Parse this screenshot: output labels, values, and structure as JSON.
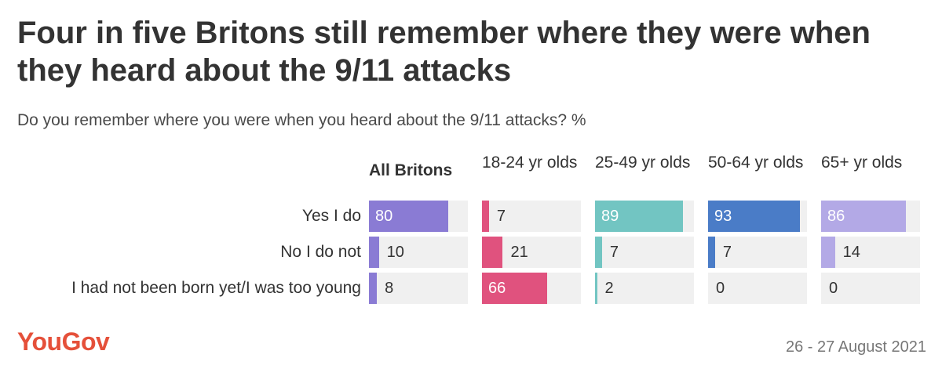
{
  "header": {
    "title": "Four in five Britons still remember where they were when they heard about the 9/11 attacks",
    "subtitle": "Do you remember where you were when you heard about the 9/11 attacks? %"
  },
  "footer": {
    "logo": "YouGov",
    "date": "26 - 27 August 2021"
  },
  "chart_data": {
    "type": "bar",
    "title": "Four in five Britons still remember where they were when they heard about the 9/11 attacks",
    "subtitle": "Do you remember where you were when you heard about the 9/11 attacks? %",
    "categories": [
      "Yes I do",
      "No I do not",
      "I had not been born yet/I was too young"
    ],
    "xlim": [
      0,
      100
    ],
    "series": [
      {
        "name": "All Britons",
        "color": "#8a7bd4",
        "values": [
          80,
          10,
          8
        ]
      },
      {
        "name": "18-24 yr olds",
        "color": "#e0527e",
        "values": [
          7,
          21,
          66
        ]
      },
      {
        "name": "25-49 yr olds",
        "color": "#72c5c2",
        "values": [
          89,
          7,
          2
        ]
      },
      {
        "name": "50-64 yr olds",
        "color": "#4a7cc7",
        "values": [
          93,
          7,
          0
        ]
      },
      {
        "name": "65+ yr olds",
        "color": "#b3a9e6",
        "values": [
          86,
          14,
          0
        ]
      }
    ]
  }
}
